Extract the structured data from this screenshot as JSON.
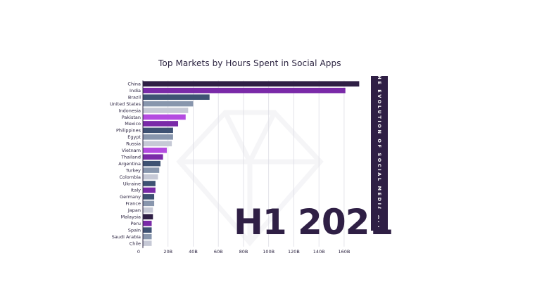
{
  "chart_data": {
    "type": "bar",
    "orientation": "horizontal",
    "title": "Top Markets by Hours Spent in Social Apps",
    "categories": [
      "China",
      "India",
      "Brazil",
      "United States",
      "Indonesia",
      "Pakistan",
      "Mexico",
      "Philippines",
      "Egypt",
      "Russia",
      "Vietnam",
      "Thailand",
      "Argentina",
      "Turkey",
      "Colombia",
      "Ukraine",
      "Italy",
      "Germany",
      "France",
      "Japan",
      "Malaysia",
      "Peru",
      "Spain",
      "Saudi Arabia",
      "Chile"
    ],
    "values": [
      172,
      161,
      53,
      40,
      36,
      34,
      28,
      24,
      24,
      23,
      19,
      16,
      14,
      13,
      12,
      10,
      10,
      9,
      9,
      8,
      8,
      7,
      7,
      7,
      7
    ],
    "bar_colors": [
      "#2f1f45",
      "#7a2aa8",
      "#3e5273",
      "#8896ad",
      "#c6c9d6",
      "#b44be0",
      "#7a2aa8",
      "#3e5273",
      "#8896ad",
      "#c6c9d6",
      "#b44be0",
      "#7a2aa8",
      "#3e5273",
      "#8896ad",
      "#c6c9d6",
      "#3e5273",
      "#7a2aa8",
      "#3e5273",
      "#8896ad",
      "#c6c9d6",
      "#2f1f45",
      "#7a2aa8",
      "#3e5273",
      "#8896ad",
      "#c6c9d6"
    ],
    "xticks": [
      "0",
      "20B",
      "40B",
      "60B",
      "80B",
      "100B",
      "120B",
      "140B",
      "160B"
    ],
    "xlim": [
      0,
      172
    ],
    "grid": true
  },
  "period": "H1 2021",
  "side_banner": "THE EVOLUTION OF SOCIAL MEDIA APPS",
  "colors": {
    "dark": "#2f1f45",
    "purple": "#7a2aa8",
    "grid": "#dcdce4"
  }
}
